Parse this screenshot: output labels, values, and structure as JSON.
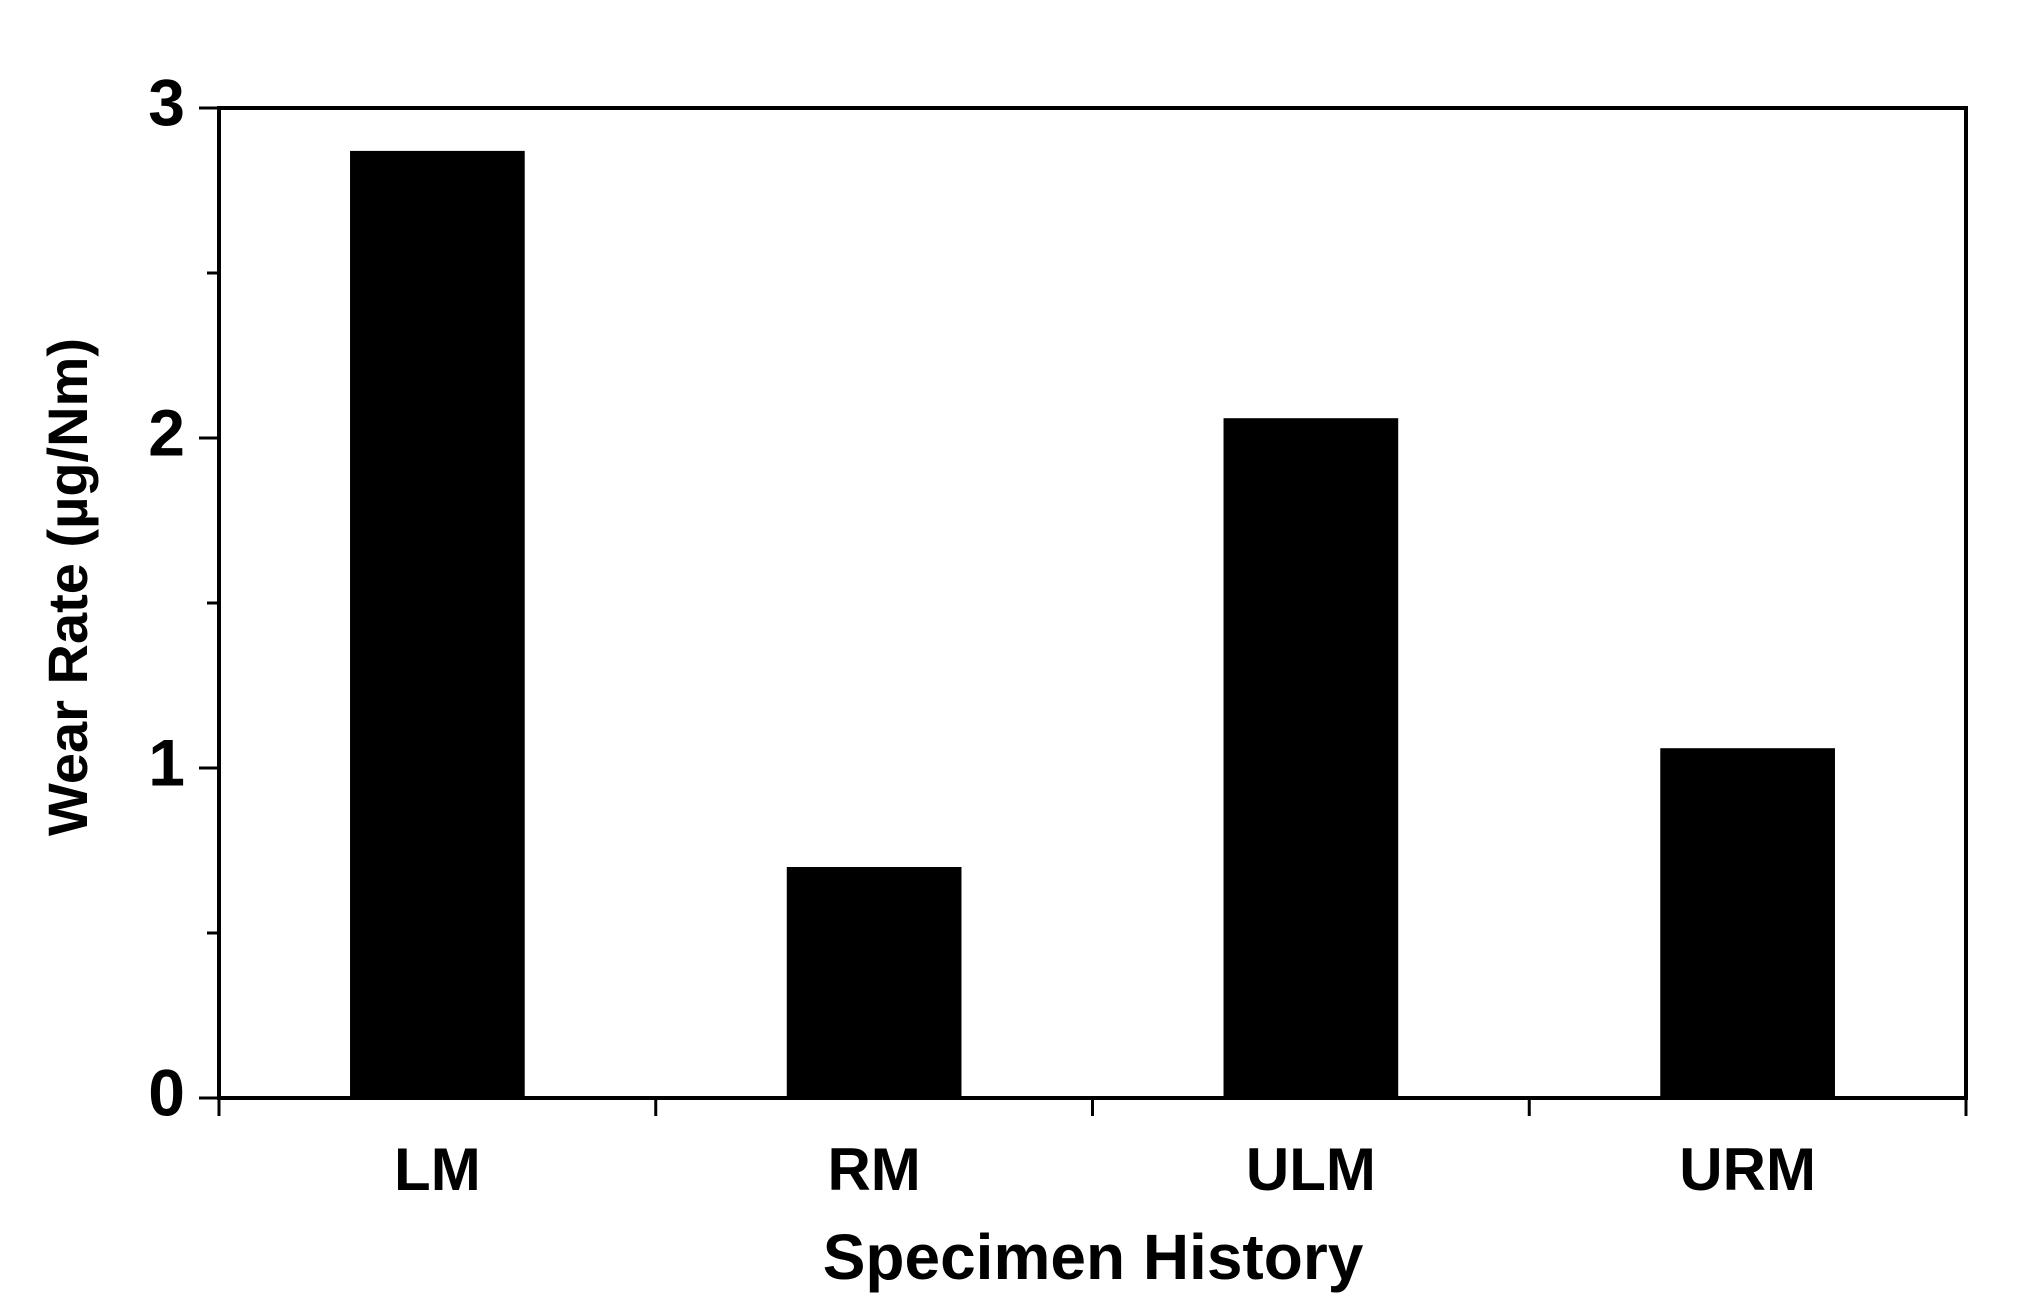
{
  "chart_data": {
    "type": "bar",
    "x_label": "Specimen History",
    "y_label": "Wear Rate (µg/Nm)",
    "categories": [
      "LM",
      "RM",
      "ULM",
      "URM"
    ],
    "values": [
      2.87,
      0.7,
      2.06,
      1.06
    ],
    "color": "#000000",
    "ylim": [
      0,
      3
    ],
    "yticks": [
      0,
      1,
      2,
      3
    ],
    "yminor_ticks": [
      0.5,
      1.5,
      2.5
    ],
    "grid": false
  }
}
